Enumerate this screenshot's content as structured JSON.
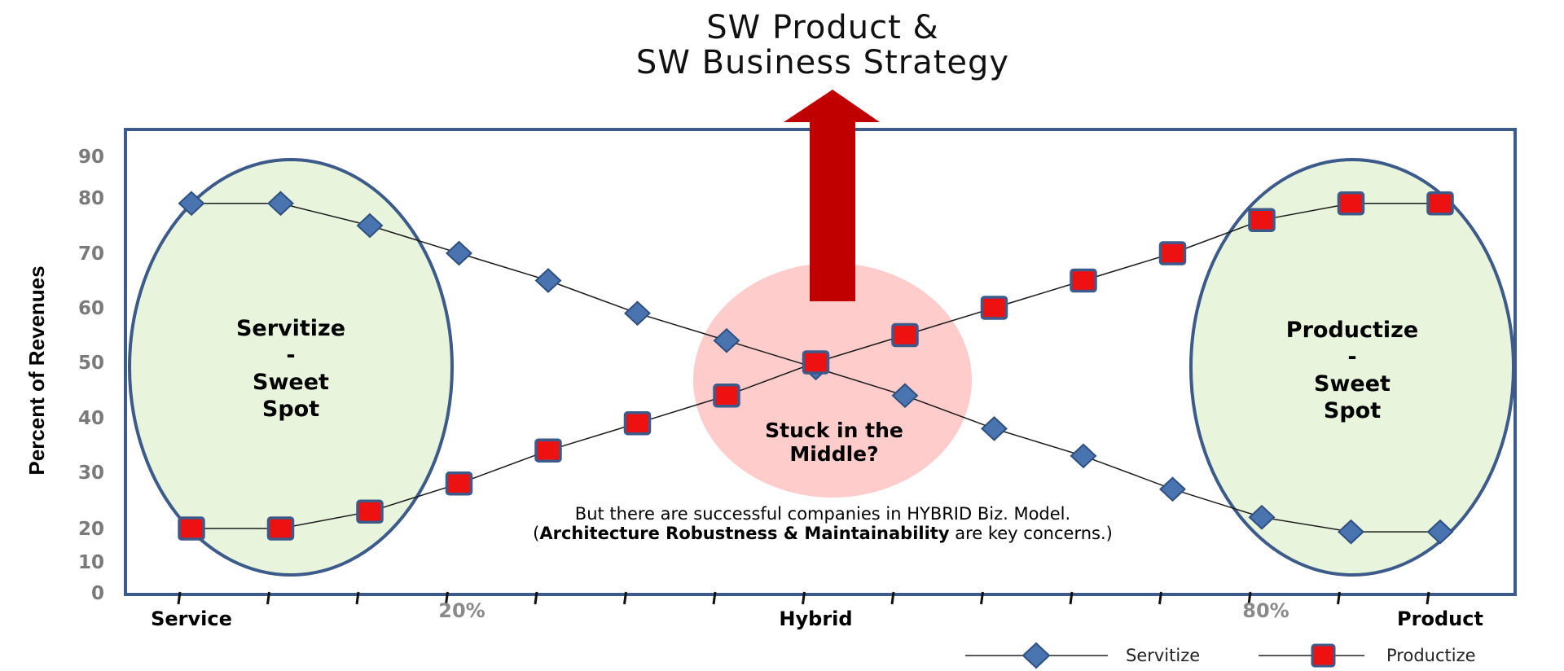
{
  "title": [
    "SW Product &",
    "SW Business Strategy"
  ],
  "chart_data": {
    "type": "line",
    "ylabel": "Percent of Revenues",
    "ylim": [
      0,
      90
    ],
    "yticks": [
      0,
      10,
      20,
      30,
      40,
      50,
      60,
      70,
      80,
      90
    ],
    "x_labels": [
      {
        "text": "Service",
        "style": "strong",
        "at": 1
      },
      {
        "text": "20%",
        "style": "grey",
        "at": 4
      },
      {
        "text": "Hybrid",
        "style": "strong",
        "at": 8
      },
      {
        "text": "80%",
        "style": "grey",
        "at": 12
      },
      {
        "text": "Product",
        "style": "strong",
        "at": 15
      }
    ],
    "x": [
      1,
      2,
      3,
      4,
      5,
      6,
      7,
      8,
      9,
      10,
      11,
      12,
      13,
      14,
      15
    ],
    "series": [
      {
        "name": "Servitize",
        "marker": "diamond",
        "color": "#4a74b0",
        "values": [
          79,
          79,
          75,
          70,
          65,
          59,
          54,
          49,
          44,
          38,
          33,
          27,
          22,
          19,
          19
        ]
      },
      {
        "name": "Productize",
        "marker": "square",
        "color": "#ee1111",
        "values": [
          20,
          20,
          23,
          28,
          34,
          39,
          44,
          50,
          55,
          60,
          65,
          70,
          76,
          79,
          79
        ]
      }
    ],
    "grid": false,
    "legend_position": "bottom-right"
  },
  "annotations": {
    "left_zone": [
      "Servitize",
      "-",
      "Sweet",
      "Spot"
    ],
    "right_zone": [
      "Productize",
      "-",
      "Sweet",
      "Spot"
    ],
    "middle_zone": [
      "Stuck in the",
      "Middle?"
    ],
    "note_line1": "But there are successful companies in HYBRID Biz. Model.",
    "note_line2_open": "(",
    "note_line2_bold": "Architecture Robustness & Maintainability",
    "note_line2_rest": " are key concerns.)"
  },
  "colors": {
    "frame": "#3c5a8a",
    "sweet_fill": "#e8f5dc",
    "sweet_stroke": "#3c5a8a",
    "middle_fill": "#ffcccc",
    "arrow": "#c00000"
  }
}
